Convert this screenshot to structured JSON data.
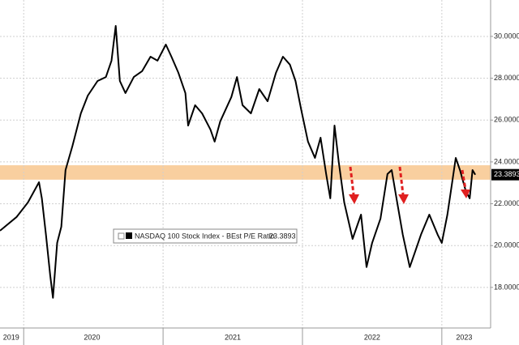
{
  "chart_data": {
    "type": "line",
    "x": [
      2019.83,
      2019.95,
      2020.03,
      2020.11,
      2020.13,
      2020.16,
      2020.19,
      2020.21,
      2020.24,
      2020.27,
      2020.3,
      2020.35,
      2020.41,
      2020.46,
      2020.53,
      2020.59,
      2020.63,
      2020.66,
      2020.69,
      2020.73,
      2020.79,
      2020.85,
      2020.91,
      2020.96,
      2021.02,
      2021.06,
      2021.11,
      2021.16,
      2021.18,
      2021.23,
      2021.28,
      2021.34,
      2021.37,
      2021.41,
      2021.49,
      2021.53,
      2021.57,
      2021.63,
      2021.69,
      2021.75,
      2021.81,
      2021.86,
      2021.91,
      2021.95,
      2021.99,
      2022.04,
      2022.09,
      2022.13,
      2022.17,
      2022.2,
      2022.23,
      2022.26,
      2022.3,
      2022.36,
      2022.42,
      2022.46,
      2022.5,
      2022.56,
      2022.61,
      2022.64,
      2022.68,
      2022.72,
      2022.77,
      2022.81,
      2022.85,
      2022.91,
      2022.97,
      2023.0,
      2023.04,
      2023.07,
      2023.1,
      2023.13,
      2023.17,
      2023.2,
      2023.22,
      2023.24
    ],
    "series": [
      {
        "name": "NASDAQ 100 Stock Index - BEst P/E Ratio",
        "color": "#000000",
        "values": [
          20.71,
          21.37,
          22.06,
          23.03,
          22.26,
          20.51,
          18.58,
          17.5,
          20.13,
          20.9,
          23.61,
          24.77,
          26.32,
          27.17,
          27.87,
          28.06,
          28.84,
          30.5,
          27.87,
          27.29,
          28.06,
          28.34,
          29.03,
          28.84,
          29.61,
          29.03,
          28.26,
          27.29,
          25.74,
          26.71,
          26.32,
          25.55,
          24.97,
          25.94,
          27.1,
          28.06,
          26.71,
          26.32,
          27.48,
          26.9,
          28.26,
          29.03,
          28.65,
          27.87,
          26.52,
          24.97,
          24.19,
          25.16,
          23.42,
          22.26,
          25.74,
          24.0,
          22.06,
          20.32,
          21.48,
          18.97,
          20.13,
          21.29,
          23.42,
          23.61,
          22.06,
          20.52,
          18.97,
          19.74,
          20.52,
          21.48,
          20.52,
          20.13,
          21.48,
          22.84,
          24.19,
          23.61,
          22.65,
          22.26,
          23.61,
          23.3893
        ],
        "last_value": 23.3893,
        "last_value_label": "23.3893"
      }
    ],
    "xlim": [
      2019.83,
      2023.35
    ],
    "xticks": [
      {
        "value": 2019.91,
        "label": "2019"
      },
      {
        "value": 2020.49,
        "label": "2020"
      },
      {
        "value": 2021.5,
        "label": "2021"
      },
      {
        "value": 2022.5,
        "label": "2022"
      },
      {
        "value": 2023.16,
        "label": "2023"
      }
    ],
    "x_dividers": [
      2020,
      2021,
      2022,
      2023
    ],
    "ylim": [
      16.06,
      31.74
    ],
    "yticks": [
      {
        "value": 18,
        "label": "18.0000"
      },
      {
        "value": 20,
        "label": "20.0000"
      },
      {
        "value": 22,
        "label": "22.0000"
      },
      {
        "value": 24,
        "label": "24.0000"
      },
      {
        "value": 26,
        "label": "26.0000"
      },
      {
        "value": 28,
        "label": "28.0000"
      },
      {
        "value": 30,
        "label": "30.0000"
      }
    ],
    "band": {
      "range": [
        23.15,
        23.84
      ],
      "color": "#f9cf9f"
    },
    "grid": true
  }
}
